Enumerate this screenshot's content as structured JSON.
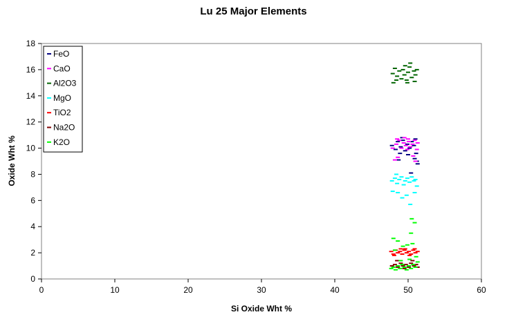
{
  "chart_data": {
    "type": "scatter",
    "title": "Lu 25 Major Elements",
    "xlabel": "Si Oxide Wht %",
    "ylabel": "Oxide Wht %",
    "xlim": [
      0,
      60
    ],
    "ylim": [
      0,
      18
    ],
    "xticks": [
      0,
      10,
      20,
      30,
      40,
      50,
      60
    ],
    "yticks": [
      0,
      2,
      4,
      6,
      8,
      10,
      12,
      14,
      16,
      18
    ],
    "grid": false,
    "legend_position": "top-left",
    "series": [
      {
        "name": "FeO",
        "color": "#000080",
        "points": [
          [
            47.8,
            10.2
          ],
          [
            48.3,
            9.9
          ],
          [
            48.6,
            10.5
          ],
          [
            49.0,
            10.1
          ],
          [
            49.3,
            10.6
          ],
          [
            49.6,
            9.8
          ],
          [
            49.9,
            10.3
          ],
          [
            50.2,
            10.0
          ],
          [
            50.5,
            10.5
          ],
          [
            50.8,
            10.2
          ],
          [
            51.1,
            9.6
          ],
          [
            51.3,
            8.8
          ],
          [
            50.9,
            9.2
          ],
          [
            50.4,
            8.1
          ],
          [
            50.0,
            9.5
          ],
          [
            48.7,
            9.1
          ],
          [
            49.2,
            10.8
          ],
          [
            51.0,
            10.7
          ],
          [
            48.9,
            9.6
          ],
          [
            51.2,
            9.0
          ]
        ]
      },
      {
        "name": "CaO",
        "color": "#ff00ff",
        "points": [
          [
            47.9,
            10.0
          ],
          [
            48.4,
            10.3
          ],
          [
            48.8,
            10.6
          ],
          [
            49.1,
            10.0
          ],
          [
            49.4,
            10.4
          ],
          [
            49.7,
            10.2
          ],
          [
            49.9,
            9.9
          ],
          [
            50.1,
            10.5
          ],
          [
            50.3,
            10.1
          ],
          [
            50.6,
            10.3
          ],
          [
            50.9,
            10.6
          ],
          [
            51.2,
            9.9
          ],
          [
            48.6,
            9.3
          ],
          [
            48.2,
            9.1
          ],
          [
            50.7,
            9.4
          ],
          [
            51.0,
            9.0
          ],
          [
            49.5,
            10.8
          ],
          [
            50.0,
            10.7
          ],
          [
            48.5,
            10.7
          ],
          [
            51.3,
            10.4
          ]
        ]
      },
      {
        "name": "Al2O3",
        "color": "#006400",
        "points": [
          [
            47.9,
            15.7
          ],
          [
            48.2,
            16.1
          ],
          [
            48.5,
            15.5
          ],
          [
            48.8,
            15.9
          ],
          [
            49.1,
            15.3
          ],
          [
            49.3,
            16.0
          ],
          [
            49.5,
            15.6
          ],
          [
            49.8,
            15.2
          ],
          [
            50.0,
            15.8
          ],
          [
            50.2,
            16.2
          ],
          [
            50.5,
            15.4
          ],
          [
            50.8,
            15.9
          ],
          [
            51.0,
            15.6
          ],
          [
            51.2,
            16.0
          ],
          [
            48.4,
            15.2
          ],
          [
            49.6,
            16.3
          ],
          [
            50.3,
            16.5
          ],
          [
            48.0,
            15.0
          ],
          [
            50.9,
            15.1
          ],
          [
            49.9,
            15.0
          ]
        ]
      },
      {
        "name": "MgO",
        "color": "#00ffff",
        "points": [
          [
            47.8,
            7.5
          ],
          [
            48.2,
            7.7
          ],
          [
            48.5,
            7.3
          ],
          [
            48.8,
            7.6
          ],
          [
            49.1,
            7.8
          ],
          [
            49.4,
            7.2
          ],
          [
            49.6,
            7.5
          ],
          [
            49.9,
            7.7
          ],
          [
            50.2,
            7.4
          ],
          [
            50.5,
            7.8
          ],
          [
            50.8,
            7.5
          ],
          [
            51.0,
            7.6
          ],
          [
            48.4,
            8.0
          ],
          [
            47.9,
            6.7
          ],
          [
            48.6,
            6.6
          ],
          [
            49.2,
            6.2
          ],
          [
            49.8,
            6.4
          ],
          [
            50.3,
            5.7
          ],
          [
            50.9,
            6.6
          ],
          [
            51.2,
            7.1
          ]
        ]
      },
      {
        "name": "TiO2",
        "color": "#ff0000",
        "points": [
          [
            47.7,
            2.1
          ],
          [
            48.0,
            1.9
          ],
          [
            48.3,
            2.2
          ],
          [
            48.6,
            2.0
          ],
          [
            48.9,
            2.1
          ],
          [
            49.2,
            1.9
          ],
          [
            49.5,
            2.2
          ],
          [
            49.8,
            2.0
          ],
          [
            50.1,
            2.1
          ],
          [
            50.4,
            1.9
          ],
          [
            50.7,
            2.2
          ],
          [
            51.0,
            2.0
          ],
          [
            51.3,
            2.1
          ],
          [
            49.0,
            2.3
          ],
          [
            50.2,
            1.8
          ],
          [
            48.1,
            1.8
          ],
          [
            50.9,
            2.3
          ],
          [
            49.6,
            2.3
          ]
        ]
      },
      {
        "name": "Na2O",
        "color": "#800000",
        "points": [
          [
            47.8,
            1.0
          ],
          [
            48.2,
            1.1
          ],
          [
            48.6,
            0.9
          ],
          [
            49.0,
            1.2
          ],
          [
            49.3,
            1.0
          ],
          [
            49.7,
            1.1
          ],
          [
            50.1,
            0.9
          ],
          [
            50.4,
            1.2
          ],
          [
            50.8,
            1.0
          ],
          [
            51.1,
            1.1
          ],
          [
            48.5,
            1.4
          ],
          [
            50.6,
            1.4
          ],
          [
            49.5,
            0.8
          ],
          [
            51.3,
            0.9
          ]
        ]
      },
      {
        "name": "K2O",
        "color": "#00ff00",
        "points": [
          [
            47.7,
            0.8
          ],
          [
            48.0,
            0.9
          ],
          [
            48.3,
            0.7
          ],
          [
            48.6,
            1.0
          ],
          [
            48.9,
            0.8
          ],
          [
            49.2,
            1.1
          ],
          [
            49.5,
            0.9
          ],
          [
            49.8,
            0.7
          ],
          [
            50.1,
            1.0
          ],
          [
            50.4,
            0.8
          ],
          [
            50.7,
            1.1
          ],
          [
            51.0,
            0.9
          ],
          [
            51.3,
            1.3
          ],
          [
            49.0,
            1.4
          ],
          [
            50.2,
            1.5
          ],
          [
            48.0,
            3.1
          ],
          [
            48.6,
            2.9
          ],
          [
            49.3,
            2.5
          ],
          [
            49.9,
            2.6
          ],
          [
            50.6,
            2.7
          ],
          [
            50.4,
            3.5
          ],
          [
            50.9,
            4.3
          ],
          [
            50.5,
            4.6
          ],
          [
            48.2,
            2.2
          ],
          [
            51.1,
            1.7
          ]
        ]
      }
    ]
  }
}
